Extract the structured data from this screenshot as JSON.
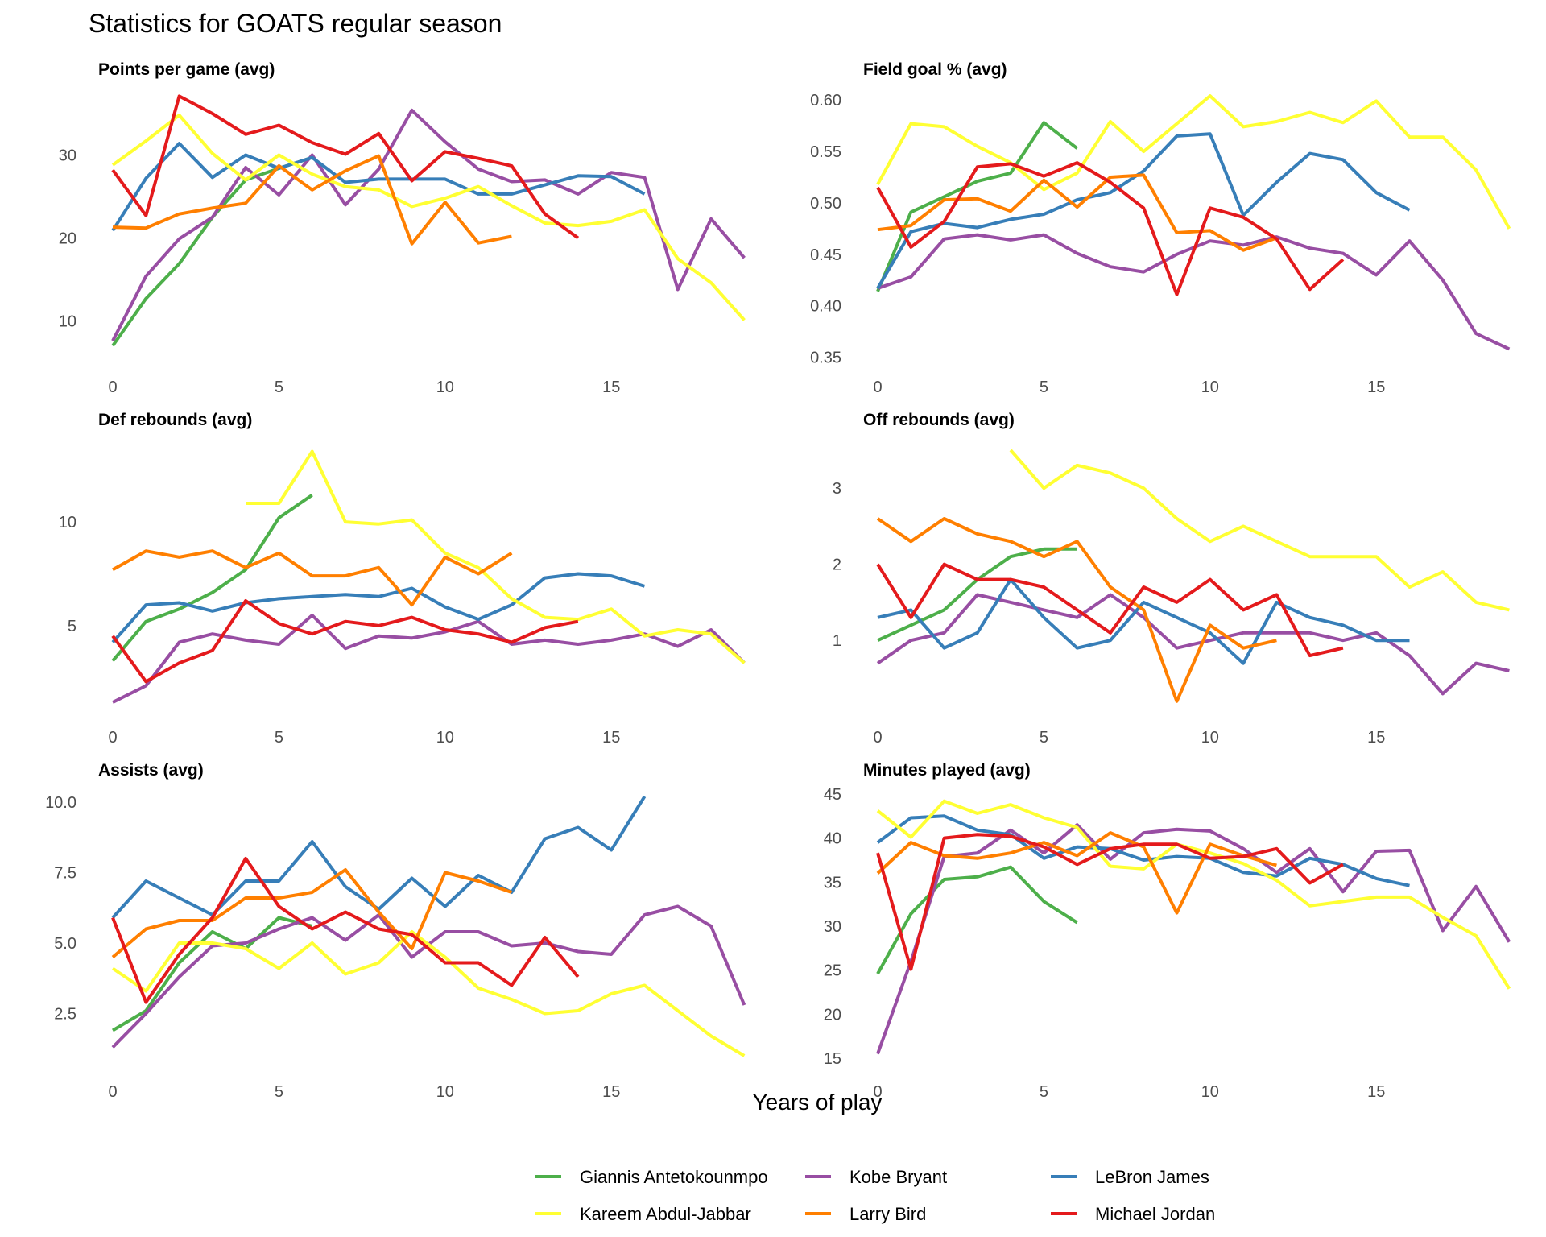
{
  "figure": {
    "title": "Statistics for GOATS regular season",
    "xlabel": "Years of play"
  },
  "legend": [
    {
      "name": "Giannis Antetokounmpo",
      "color": "#4DAF4A"
    },
    {
      "name": "Kobe Bryant",
      "color": "#984EA3"
    },
    {
      "name": "LeBron James",
      "color": "#377EB8"
    },
    {
      "name": "Kareem Abdul-Jabbar",
      "color": "#FFFF33"
    },
    {
      "name": "Larry Bird",
      "color": "#FF7F00"
    },
    {
      "name": "Michael Jordan",
      "color": "#E41A1C"
    }
  ],
  "chart_data": [
    {
      "type": "line",
      "title": "Points per game (avg)",
      "xlabel": "Years of play",
      "xlim": [
        0,
        19.5
      ],
      "ylim": [
        5,
        38.5
      ],
      "xticks": [
        0,
        5,
        10,
        15
      ],
      "yticks": [
        10,
        20,
        30
      ],
      "ytick_labels": [
        "10",
        "20",
        "30"
      ],
      "series": [
        {
          "name": "Giannis Antetokounmpo",
          "values": [
            7,
            12.7,
            16.9,
            22.5,
            27,
            28.4,
            29.7
          ]
        },
        {
          "name": "Kobe Bryant",
          "values": [
            7.6,
            15.4,
            19.9,
            22.5,
            28.5,
            25.2,
            30,
            24,
            28.3,
            35.4,
            31.6,
            28.3,
            26.8,
            27,
            25.3,
            27.9,
            27.3,
            13.8,
            22.3,
            17.6
          ]
        },
        {
          "name": "LeBron James",
          "values": [
            20.9,
            27.2,
            31.4,
            27.3,
            30,
            28.4,
            29.7,
            26.7,
            27.1,
            27.1,
            27.1,
            25.3,
            25.3,
            26.4,
            27.5,
            27.4,
            25.3
          ]
        },
        {
          "name": "Kareem Abdul-Jabbar",
          "values": [
            28.8,
            31.7,
            34.8,
            30.2,
            27,
            30,
            27.7,
            26.2,
            25.8,
            23.8,
            24.8,
            26.2,
            23.9,
            21.8,
            21.5,
            22,
            23.4,
            17.5,
            14.6,
            10.1
          ]
        },
        {
          "name": "Larry Bird",
          "values": [
            21.3,
            21.2,
            22.9,
            23.6,
            24.2,
            28.7,
            25.8,
            28.1,
            29.9,
            19.3,
            24.3,
            19.4,
            20.2
          ]
        },
        {
          "name": "Michael Jordan",
          "values": [
            28.2,
            22.7,
            37.1,
            35,
            32.5,
            33.6,
            31.5,
            30.1,
            32.6,
            26.9,
            30.4,
            29.6,
            28.7,
            22.9,
            20
          ]
        }
      ]
    },
    {
      "type": "line",
      "title": "Field goal % (avg)",
      "xlabel": "Years of play",
      "xlim": [
        0,
        19.5
      ],
      "ylim": [
        0.345,
        0.615
      ],
      "xticks": [
        0,
        5,
        10,
        15
      ],
      "yticks": [
        0.35,
        0.4,
        0.45,
        0.5,
        0.55,
        0.6
      ],
      "ytick_labels": [
        "0.35",
        "0.40",
        "0.45",
        "0.50",
        "0.55",
        "0.60"
      ],
      "series": [
        {
          "name": "Giannis Antetokounmpo",
          "values": [
            0.414,
            0.491,
            0.506,
            0.521,
            0.529,
            0.578,
            0.553
          ]
        },
        {
          "name": "Kobe Bryant",
          "values": [
            0.417,
            0.428,
            0.465,
            0.469,
            0.464,
            0.469,
            0.451,
            0.438,
            0.433,
            0.45,
            0.463,
            0.459,
            0.467,
            0.456,
            0.451,
            0.43,
            0.463,
            0.425,
            0.373,
            0.358
          ]
        },
        {
          "name": "LeBron James",
          "values": [
            0.417,
            0.472,
            0.48,
            0.476,
            0.484,
            0.489,
            0.503,
            0.51,
            0.531,
            0.565,
            0.567,
            0.488,
            0.52,
            0.548,
            0.542,
            0.51,
            0.493
          ]
        },
        {
          "name": "Kareem Abdul-Jabbar",
          "values": [
            0.518,
            0.577,
            0.574,
            0.555,
            0.539,
            0.513,
            0.529,
            0.579,
            0.55,
            0.577,
            0.604,
            0.574,
            0.579,
            0.588,
            0.578,
            0.599,
            0.564,
            0.564,
            0.532,
            0.475
          ]
        },
        {
          "name": "Larry Bird",
          "values": [
            0.474,
            0.478,
            0.503,
            0.504,
            0.492,
            0.522,
            0.496,
            0.525,
            0.527,
            0.471,
            0.473,
            0.454,
            0.466
          ]
        },
        {
          "name": "Michael Jordan",
          "values": [
            0.515,
            0.457,
            0.482,
            0.535,
            0.538,
            0.526,
            0.539,
            0.52,
            0.495,
            0.411,
            0.495,
            0.486,
            0.465,
            0.416,
            0.445
          ]
        }
      ]
    },
    {
      "type": "line",
      "title": "Def rebounds (avg)",
      "xlabel": "Years of play",
      "xlim": [
        0,
        19.5
      ],
      "ylim": [
        0.8,
        14.2
      ],
      "xticks": [
        0,
        5,
        10,
        15
      ],
      "yticks": [
        5,
        10
      ],
      "ytick_labels": [
        "5",
        "10"
      ],
      "series": [
        {
          "name": "Giannis Antetokounmpo",
          "values": [
            3.3,
            5.2,
            5.8,
            6.6,
            7.7,
            10.2,
            11.3
          ]
        },
        {
          "name": "Kobe Bryant",
          "values": [
            1.3,
            2.1,
            4.2,
            4.6,
            4.3,
            4.1,
            5.5,
            3.9,
            4.5,
            4.4,
            4.7,
            5.2,
            4.1,
            4.3,
            4.1,
            4.3,
            4.6,
            4,
            4.8,
            3.2
          ]
        },
        {
          "name": "LeBron James",
          "values": [
            4.2,
            6,
            6.1,
            5.7,
            6.1,
            6.3,
            6.4,
            6.5,
            6.4,
            6.8,
            5.9,
            5.3,
            6,
            7.3,
            7.5,
            7.4,
            6.9
          ]
        },
        {
          "name": "Kareem Abdul-Jabbar",
          "values": [
            null,
            null,
            null,
            null,
            10.9,
            10.9,
            13.4,
            10,
            9.9,
            10.1,
            8.5,
            7.8,
            6.3,
            5.4,
            5.3,
            5.8,
            4.5,
            4.8,
            4.6,
            3.2
          ]
        },
        {
          "name": "Larry Bird",
          "values": [
            7.7,
            8.6,
            8.3,
            8.6,
            7.8,
            8.5,
            7.4,
            7.4,
            7.8,
            6,
            8.3,
            7.5,
            8.5
          ]
        },
        {
          "name": "Michael Jordan",
          "values": [
            4.5,
            2.3,
            3.2,
            3.8,
            6.2,
            5.1,
            4.6,
            5.2,
            5,
            5.4,
            4.8,
            4.6,
            4.2,
            4.9,
            5.2
          ]
        }
      ]
    },
    {
      "type": "line",
      "title": "Off rebounds (avg)",
      "xlabel": "Years of play",
      "xlim": [
        0,
        19.5
      ],
      "ylim": [
        0.05,
        3.7
      ],
      "xticks": [
        0,
        5,
        10,
        15
      ],
      "yticks": [
        1,
        2,
        3
      ],
      "ytick_labels": [
        "1",
        "2",
        "3"
      ],
      "series": [
        {
          "name": "Giannis Antetokounmpo",
          "values": [
            1,
            1.2,
            1.4,
            1.8,
            2.1,
            2.2,
            2.2
          ]
        },
        {
          "name": "Kobe Bryant",
          "values": [
            0.7,
            1,
            1.1,
            1.6,
            1.5,
            1.4,
            1.3,
            1.6,
            1.3,
            0.9,
            1,
            1.1,
            1.1,
            1.1,
            1,
            1.1,
            0.8,
            0.3,
            0.7,
            0.6
          ]
        },
        {
          "name": "LeBron James",
          "values": [
            1.3,
            1.4,
            0.9,
            1.1,
            1.8,
            1.3,
            0.9,
            1,
            1.5,
            1.3,
            1.1,
            0.7,
            1.5,
            1.3,
            1.2,
            1,
            1
          ]
        },
        {
          "name": "Kareem Abdul-Jabbar",
          "values": [
            null,
            null,
            null,
            null,
            3.5,
            3,
            3.3,
            3.2,
            3,
            2.6,
            2.3,
            2.5,
            2.3,
            2.1,
            2.1,
            2.1,
            1.7,
            1.9,
            1.5,
            1.4
          ]
        },
        {
          "name": "Larry Bird",
          "values": [
            2.6,
            2.3,
            2.6,
            2.4,
            2.3,
            2.1,
            2.3,
            1.7,
            1.4,
            0.2,
            1.2,
            0.9,
            1
          ]
        },
        {
          "name": "Michael Jordan",
          "values": [
            2,
            1.3,
            2,
            1.8,
            1.8,
            1.7,
            1.4,
            1.1,
            1.7,
            1.5,
            1.8,
            1.4,
            1.6,
            0.8,
            0.9
          ]
        }
      ]
    },
    {
      "type": "line",
      "title": "Assists (avg)",
      "xlabel": "Years of play",
      "xlim": [
        0,
        19.5
      ],
      "ylim": [
        0.6,
        10.6
      ],
      "xticks": [
        0,
        5,
        10,
        15
      ],
      "yticks": [
        2.5,
        5,
        7.5,
        10
      ],
      "ytick_labels": [
        "2.5",
        "5.0",
        "7.5",
        "10.0"
      ],
      "series": [
        {
          "name": "Giannis Antetokounmpo",
          "values": [
            1.9,
            2.6,
            4.3,
            5.4,
            4.8,
            5.9,
            5.6
          ]
        },
        {
          "name": "Kobe Bryant",
          "values": [
            1.3,
            2.5,
            3.8,
            4.9,
            5,
            5.5,
            5.9,
            5.1,
            6,
            4.5,
            5.4,
            5.4,
            4.9,
            5,
            4.7,
            4.6,
            6,
            6.3,
            5.6,
            2.8
          ]
        },
        {
          "name": "LeBron James",
          "values": [
            5.9,
            7.2,
            6.6,
            6,
            7.2,
            7.2,
            8.6,
            7,
            6.2,
            7.3,
            6.3,
            7.4,
            6.8,
            8.7,
            9.1,
            8.3,
            10.2
          ]
        },
        {
          "name": "Kareem Abdul-Jabbar",
          "values": [
            4.1,
            3.3,
            5,
            5,
            4.8,
            4.1,
            5,
            3.9,
            4.3,
            5.4,
            4.5,
            3.4,
            3,
            2.5,
            2.6,
            3.2,
            3.5,
            2.6,
            1.7,
            1
          ]
        },
        {
          "name": "Larry Bird",
          "values": [
            4.5,
            5.5,
            5.8,
            5.8,
            6.6,
            6.6,
            6.8,
            7.6,
            6.1,
            4.8,
            7.5,
            7.2,
            6.8
          ]
        },
        {
          "name": "Michael Jordan",
          "values": [
            5.9,
            2.9,
            4.6,
            5.9,
            8,
            6.3,
            5.5,
            6.1,
            5.5,
            5.3,
            4.3,
            4.3,
            3.5,
            5.2,
            3.8
          ]
        }
      ]
    },
    {
      "type": "line",
      "title": "Minutes played (avg)",
      "xlabel": "Years of play",
      "xlim": [
        0,
        19.5
      ],
      "ylim": [
        14,
        46
      ],
      "xticks": [
        0,
        5,
        10,
        15
      ],
      "yticks": [
        15,
        20,
        25,
        30,
        35,
        40,
        45
      ],
      "ytick_labels": [
        "15",
        "20",
        "25",
        "30",
        "35",
        "40",
        "45"
      ],
      "series": [
        {
          "name": "Giannis Antetokounmpo",
          "values": [
            24.6,
            31.4,
            35.3,
            35.6,
            36.7,
            32.8,
            30.4
          ]
        },
        {
          "name": "Kobe Bryant",
          "values": [
            15.5,
            26,
            37.9,
            38.3,
            40.9,
            38.3,
            41.5,
            37.6,
            40.6,
            41,
            40.8,
            38.8,
            36.1,
            38.8,
            33.9,
            38.5,
            38.6,
            29.5,
            34.5,
            28.2
          ]
        },
        {
          "name": "LeBron James",
          "values": [
            39.5,
            42.3,
            42.5,
            40.9,
            40.4,
            37.7,
            39,
            38.8,
            37.5,
            37.9,
            37.7,
            36.1,
            35.7,
            37.7,
            37,
            35.4,
            34.6
          ]
        },
        {
          "name": "Kareem Abdul-Jabbar",
          "values": [
            43.1,
            40.1,
            44.2,
            42.8,
            43.8,
            42.3,
            41.2,
            36.8,
            36.5,
            39.3,
            38.3,
            37.1,
            35.2,
            32.3,
            32.8,
            33.3,
            33.3,
            31,
            28.9,
            22.9
          ]
        },
        {
          "name": "Larry Bird",
          "values": [
            36,
            39.5,
            38,
            37.7,
            38.3,
            39.5,
            38,
            40.6,
            39,
            31.5,
            39.3,
            38,
            36.9
          ]
        },
        {
          "name": "Michael Jordan",
          "values": [
            38.3,
            25.1,
            40,
            40.4,
            40.2,
            39,
            37,
            38.8,
            39.3,
            39.3,
            37.7,
            37.9,
            38.8,
            34.9,
            37
          ]
        }
      ]
    }
  ]
}
